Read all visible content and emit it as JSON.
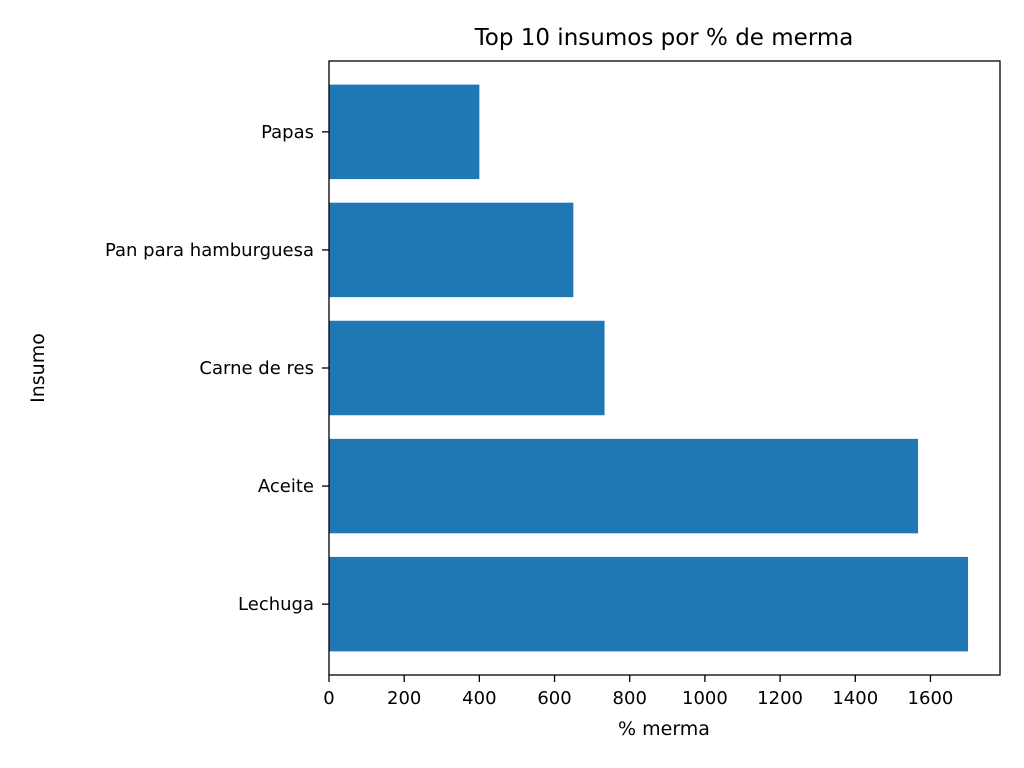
{
  "chart_data": {
    "type": "bar",
    "orientation": "horizontal",
    "title": "Top 10 insumos por % de merma",
    "xlabel": "% merma",
    "ylabel": "Insumo",
    "categories": [
      "Lechuga",
      "Aceite",
      "Carne de res",
      "Pan para hamburguesa",
      "Papas"
    ],
    "values": [
      1700,
      1567,
      733,
      650,
      400
    ],
    "xlim": [
      0,
      1785
    ],
    "xticks": [
      0,
      200,
      400,
      600,
      800,
      1000,
      1200,
      1400,
      1600
    ],
    "grid": false,
    "legend": "none",
    "bar_color": "#1f77b4"
  }
}
